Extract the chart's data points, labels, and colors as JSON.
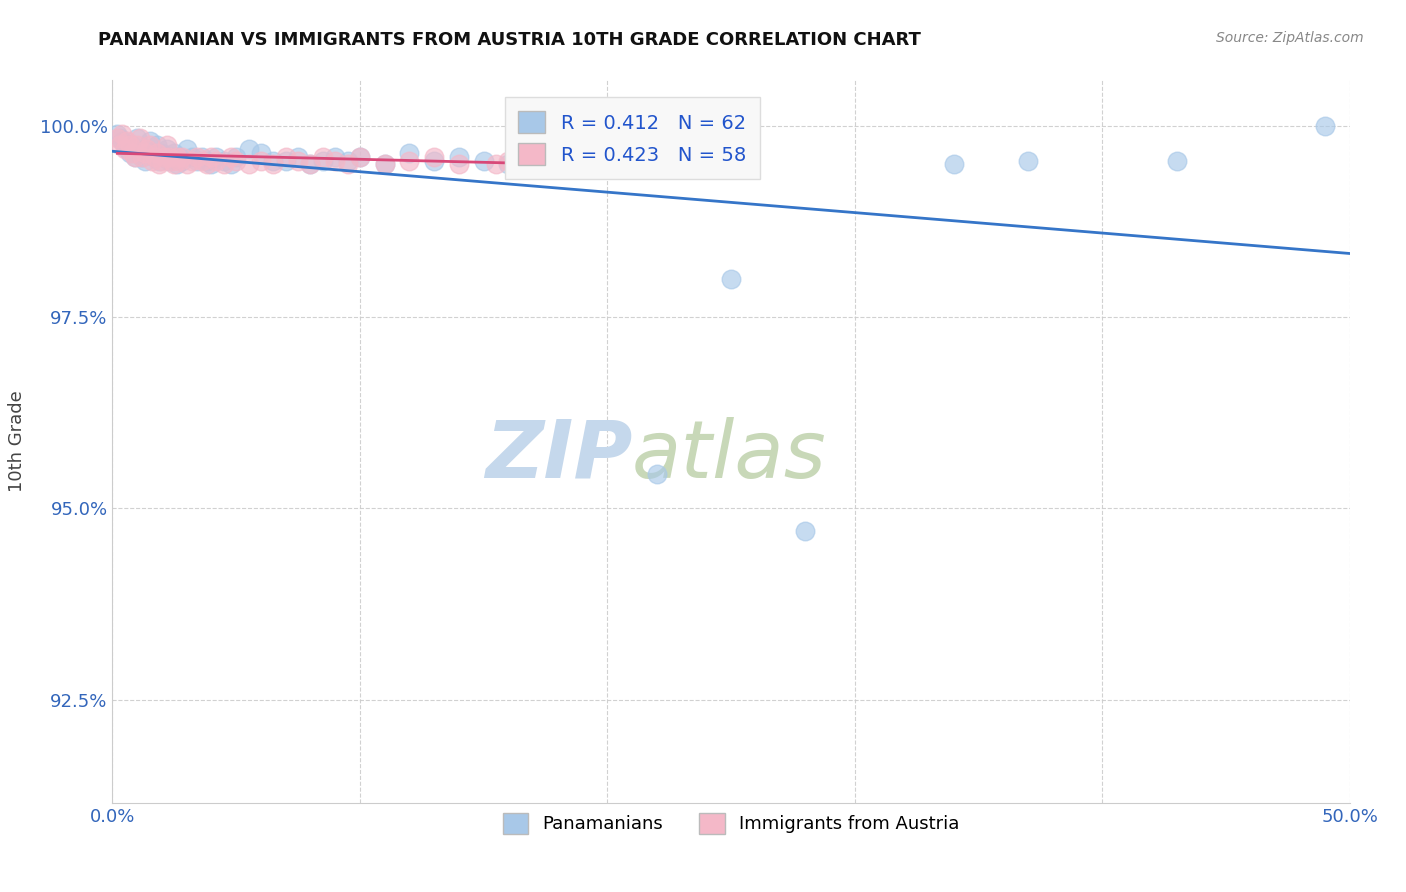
{
  "title": "PANAMANIAN VS IMMIGRANTS FROM AUSTRIA 10TH GRADE CORRELATION CHART",
  "source_text": "Source: ZipAtlas.com",
  "ylabel": "10th Grade",
  "xmin": 0.0,
  "xmax": 0.5,
  "ymin": 0.9115,
  "ymax": 1.006,
  "x_ticks": [
    0.0,
    0.1,
    0.2,
    0.3,
    0.4,
    0.5
  ],
  "x_tick_labels": [
    "0.0%",
    "",
    "",
    "",
    "",
    "50.0%"
  ],
  "y_ticks": [
    0.925,
    0.95,
    0.975,
    1.0
  ],
  "y_tick_labels": [
    "92.5%",
    "95.0%",
    "97.5%",
    "100.0%"
  ],
  "blue_R": 0.412,
  "blue_N": 62,
  "pink_R": 0.423,
  "pink_N": 58,
  "legend_label_blue": "Panamanians",
  "legend_label_pink": "Immigrants from Austria",
  "blue_color": "#a8c8e8",
  "pink_color": "#f4b8c8",
  "blue_line_color": "#3575c8",
  "pink_line_color": "#d84878",
  "blue_scatter_x": [
    0.002,
    0.003,
    0.004,
    0.005,
    0.006,
    0.007,
    0.008,
    0.009,
    0.01,
    0.011,
    0.012,
    0.013,
    0.014,
    0.015,
    0.016,
    0.017,
    0.018,
    0.019,
    0.02,
    0.021,
    0.022,
    0.023,
    0.024,
    0.025,
    0.026,
    0.027,
    0.028,
    0.03,
    0.032,
    0.034,
    0.036,
    0.038,
    0.04,
    0.042,
    0.045,
    0.048,
    0.05,
    0.055,
    0.06,
    0.065,
    0.07,
    0.075,
    0.08,
    0.085,
    0.09,
    0.095,
    0.1,
    0.11,
    0.12,
    0.13,
    0.14,
    0.15,
    0.16,
    0.17,
    0.2,
    0.22,
    0.25,
    0.28,
    0.34,
    0.37,
    0.43,
    0.49
  ],
  "blue_scatter_y": [
    0.999,
    0.9985,
    0.998,
    0.9975,
    0.997,
    0.9965,
    0.9975,
    0.996,
    0.9985,
    0.9965,
    0.996,
    0.9955,
    0.997,
    0.998,
    0.9965,
    0.996,
    0.9975,
    0.9955,
    0.9965,
    0.996,
    0.997,
    0.9955,
    0.996,
    0.9965,
    0.995,
    0.996,
    0.9955,
    0.997,
    0.996,
    0.9955,
    0.996,
    0.9955,
    0.995,
    0.996,
    0.9955,
    0.995,
    0.996,
    0.997,
    0.9965,
    0.9955,
    0.9955,
    0.996,
    0.995,
    0.9955,
    0.996,
    0.9955,
    0.996,
    0.995,
    0.9965,
    0.9955,
    0.996,
    0.9955,
    0.995,
    0.996,
    0.995,
    0.9545,
    0.98,
    0.947,
    0.995,
    0.9955,
    0.9955,
    1.0
  ],
  "pink_scatter_x": [
    0.002,
    0.003,
    0.004,
    0.005,
    0.006,
    0.007,
    0.008,
    0.009,
    0.01,
    0.011,
    0.012,
    0.013,
    0.014,
    0.015,
    0.016,
    0.017,
    0.018,
    0.019,
    0.02,
    0.021,
    0.022,
    0.023,
    0.024,
    0.025,
    0.026,
    0.027,
    0.028,
    0.03,
    0.032,
    0.034,
    0.036,
    0.038,
    0.04,
    0.042,
    0.045,
    0.048,
    0.05,
    0.055,
    0.06,
    0.065,
    0.07,
    0.075,
    0.08,
    0.085,
    0.09,
    0.095,
    0.1,
    0.11,
    0.12,
    0.13,
    0.14,
    0.155,
    0.16,
    0.17,
    0.18,
    0.2,
    0.21,
    0.23
  ],
  "pink_scatter_y": [
    0.9985,
    0.9975,
    0.999,
    0.997,
    0.998,
    0.9975,
    0.9965,
    0.996,
    0.9975,
    0.9985,
    0.996,
    0.9965,
    0.997,
    0.9975,
    0.9955,
    0.996,
    0.9965,
    0.995,
    0.9955,
    0.996,
    0.9975,
    0.996,
    0.9955,
    0.995,
    0.996,
    0.9955,
    0.996,
    0.995,
    0.9955,
    0.996,
    0.9955,
    0.995,
    0.996,
    0.9955,
    0.995,
    0.996,
    0.9955,
    0.995,
    0.9955,
    0.995,
    0.996,
    0.9955,
    0.995,
    0.996,
    0.9955,
    0.995,
    0.996,
    0.995,
    0.9955,
    0.996,
    0.995,
    0.995,
    0.9955,
    0.996,
    0.995,
    0.9955,
    0.996,
    0.995
  ]
}
